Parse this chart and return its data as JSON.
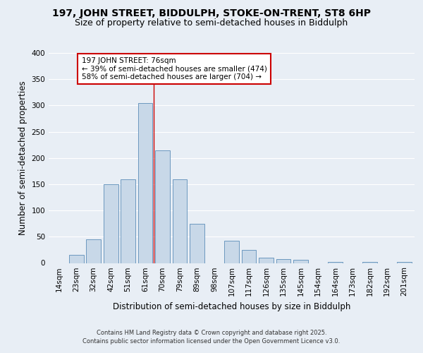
{
  "title_line1": "197, JOHN STREET, BIDDULPH, STOKE-ON-TRENT, ST8 6HP",
  "title_line2": "Size of property relative to semi-detached houses in Biddulph",
  "xlabel": "Distribution of semi-detached houses by size in Biddulph",
  "ylabel": "Number of semi-detached properties",
  "footer": "Contains HM Land Registry data © Crown copyright and database right 2025.\nContains public sector information licensed under the Open Government Licence v3.0.",
  "bins": [
    "14sqm",
    "23sqm",
    "32sqm",
    "42sqm",
    "51sqm",
    "61sqm",
    "70sqm",
    "79sqm",
    "89sqm",
    "98sqm",
    "107sqm",
    "117sqm",
    "126sqm",
    "135sqm",
    "145sqm",
    "154sqm",
    "164sqm",
    "173sqm",
    "182sqm",
    "192sqm",
    "201sqm"
  ],
  "values": [
    0,
    15,
    45,
    150,
    160,
    305,
    215,
    160,
    75,
    0,
    42,
    25,
    10,
    8,
    6,
    0,
    2,
    0,
    2,
    0,
    2
  ],
  "bar_color": "#c8d8e8",
  "bar_edge_color": "#5b8db8",
  "property_label": "197 JOHN STREET: 76sqm",
  "pct_smaller": 39,
  "n_smaller": 474,
  "pct_larger": 58,
  "n_larger": 704,
  "vline_position": 5.5,
  "vline_color": "#cc0000",
  "annotation_box_edge": "#cc0000",
  "ylim": [
    0,
    400
  ],
  "yticks": [
    0,
    50,
    100,
    150,
    200,
    250,
    300,
    350,
    400
  ],
  "bg_color": "#e8eef5",
  "plot_bg_color": "#e8eef5",
  "grid_color": "#ffffff",
  "title_fontsize": 10,
  "subtitle_fontsize": 9,
  "label_fontsize": 8.5,
  "tick_fontsize": 7.5,
  "annot_fontsize": 7.5,
  "footer_fontsize": 6
}
